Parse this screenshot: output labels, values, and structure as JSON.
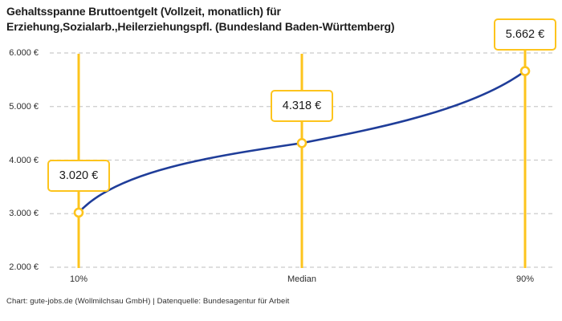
{
  "title": "Gehaltsspanne Bruttoentgelt (Vollzeit, monatlich) für\nErziehung,Sozialarb.,Heilerziehungspfl. (Bundesland Baden-Württemberg)",
  "footer": "Chart: gute-jobs.de (Wollmilchsau GmbH) | Datenquelle: Bundesagentur für Arbeit",
  "colors": {
    "accent_yellow": "#FDC41D",
    "curve_blue": "#1F3D99",
    "grid_gray": "#CBCBCB",
    "text_dark": "#1D1D1D",
    "text_muted": "#2E2E2E",
    "background": "#FFFFFF"
  },
  "chart_data": {
    "type": "line",
    "title": "Gehaltsspanne Bruttoentgelt (Vollzeit, monatlich) für Erziehung,Sozialarb.,Heilerziehungspfl. (Bundesland Baden-Württemberg)",
    "categories": [
      "10%",
      "Median",
      "90%"
    ],
    "values": [
      3020,
      4318,
      5662
    ],
    "value_labels": [
      "3.020 €",
      "4.318 €",
      "5.662 €"
    ],
    "xlabel": "",
    "ylabel": "",
    "ylim": [
      2000,
      6000
    ],
    "y_ticks": [
      2000,
      3000,
      4000,
      5000,
      6000
    ],
    "y_tick_labels": [
      "2.000 €",
      "3.000 €",
      "4.000 €",
      "5.000 €",
      "6.000 €"
    ],
    "grid": true,
    "grid_style": "dashed",
    "legend": false,
    "annotations": "value label in outlined box above each percentile marker, vertical accent line at each percentile"
  }
}
